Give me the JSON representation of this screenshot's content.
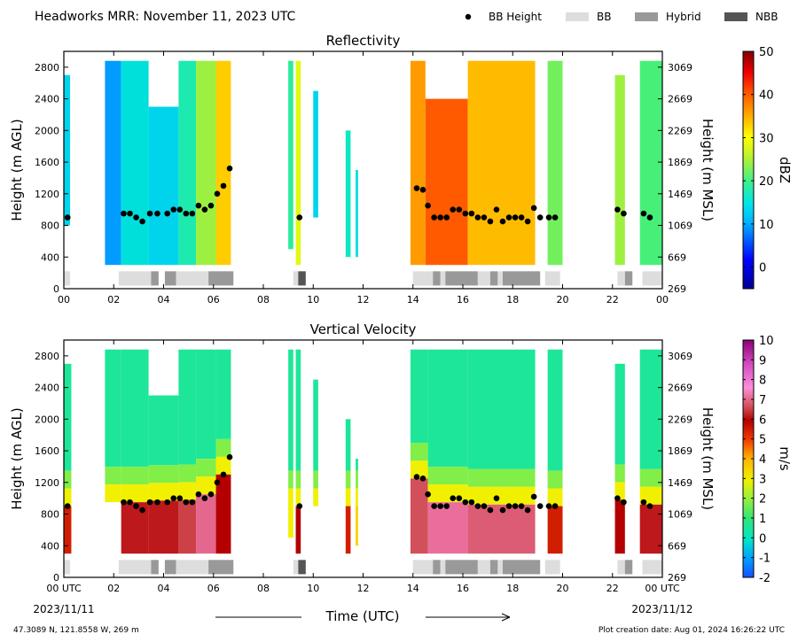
{
  "header": {
    "title": "Headworks MRR:  November 11, 2023 UTC",
    "legend": [
      {
        "label": "BB Height",
        "kind": "dot",
        "color": "#000000"
      },
      {
        "label": "BB",
        "kind": "swatch",
        "color": "#dddddd"
      },
      {
        "label": "Hybrid",
        "kind": "swatch",
        "color": "#999999"
      },
      {
        "label": "NBB",
        "kind": "swatch",
        "color": "#555555"
      }
    ]
  },
  "footer": {
    "location": "47.3089 N, 121.8558 W, 269 m",
    "creation": "Plot creation date: Aug 01, 2024 16:26:22 UTC",
    "start_date": "2023/11/11",
    "end_date": "2023/11/12"
  },
  "chart_data": [
    {
      "type": "heatmap",
      "title": "Reflectivity",
      "xlabel": "",
      "ylabel": "Height (m AGL)",
      "ylabel_right": "Height (m MSL)",
      "colorbar_label": "dBZ",
      "xlim": [
        0,
        24
      ],
      "ylim": [
        0,
        3000
      ],
      "x_ticks": [
        "00",
        "02",
        "04",
        "06",
        "08",
        "10",
        "12",
        "14",
        "16",
        "18",
        "20",
        "22",
        "00"
      ],
      "y_ticks": [
        0,
        400,
        800,
        1200,
        1600,
        2000,
        2400,
        2800
      ],
      "y_ticks_right": [
        269,
        669,
        1069,
        1469,
        1869,
        2269,
        2669,
        3069
      ],
      "colorbar": {
        "min": -5,
        "max": 50,
        "ticks": [
          0,
          10,
          20,
          30,
          40,
          50
        ]
      },
      "data_top": 2880,
      "data_bottom": 300,
      "segments": [
        {
          "start": 0.0,
          "end": 0.25,
          "top": 2700,
          "bottom": 800,
          "value": 12
        },
        {
          "start": 1.65,
          "end": 2.3,
          "top": 2880,
          "bottom": 300,
          "value": 8
        },
        {
          "start": 2.3,
          "end": 3.4,
          "top": 2880,
          "bottom": 300,
          "value": 14
        },
        {
          "start": 3.4,
          "end": 4.6,
          "top": 2300,
          "bottom": 300,
          "value": 12
        },
        {
          "start": 4.6,
          "end": 5.3,
          "top": 2880,
          "bottom": 300,
          "value": 17
        },
        {
          "start": 5.3,
          "end": 6.1,
          "top": 2880,
          "bottom": 300,
          "value": 24
        },
        {
          "start": 6.1,
          "end": 6.7,
          "top": 2880,
          "bottom": 300,
          "value": 33
        },
        {
          "start": 9.0,
          "end": 9.2,
          "top": 2880,
          "bottom": 500,
          "value": 18
        },
        {
          "start": 9.3,
          "end": 9.5,
          "top": 2880,
          "bottom": 300,
          "value": 28
        },
        {
          "start": 10.0,
          "end": 10.2,
          "top": 2500,
          "bottom": 900,
          "value": 12
        },
        {
          "start": 11.3,
          "end": 11.5,
          "top": 2000,
          "bottom": 400,
          "value": 16
        },
        {
          "start": 11.7,
          "end": 11.8,
          "top": 1500,
          "bottom": 400,
          "value": 14
        },
        {
          "start": 13.9,
          "end": 14.5,
          "top": 2880,
          "bottom": 300,
          "value": 36
        },
        {
          "start": 14.5,
          "end": 16.2,
          "top": 2400,
          "bottom": 300,
          "value": 40
        },
        {
          "start": 16.2,
          "end": 18.9,
          "top": 2880,
          "bottom": 300,
          "value": 34
        },
        {
          "start": 19.4,
          "end": 20.0,
          "top": 2880,
          "bottom": 300,
          "value": 22
        },
        {
          "start": 22.1,
          "end": 22.5,
          "top": 2700,
          "bottom": 300,
          "value": 24
        },
        {
          "start": 23.1,
          "end": 24.0,
          "top": 2880,
          "bottom": 300,
          "value": 20
        }
      ],
      "bb_height": {
        "x": [
          0.15,
          2.4,
          2.65,
          2.9,
          3.15,
          3.45,
          3.75,
          4.15,
          4.4,
          4.65,
          4.9,
          5.15,
          5.4,
          5.65,
          5.9,
          6.15,
          6.4,
          6.65,
          9.45,
          14.15,
          14.4,
          14.6,
          14.85,
          15.1,
          15.35,
          15.6,
          15.85,
          16.1,
          16.35,
          16.6,
          16.85,
          17.1,
          17.35,
          17.6,
          17.85,
          18.1,
          18.35,
          18.6,
          18.85,
          19.1,
          19.45,
          19.7,
          22.2,
          22.45,
          23.25,
          23.5
        ],
        "y": [
          900,
          950,
          950,
          900,
          850,
          950,
          950,
          950,
          1000,
          1000,
          950,
          950,
          1050,
          1000,
          1050,
          1200,
          1300,
          1520,
          900,
          1270,
          1250,
          1050,
          900,
          900,
          900,
          1000,
          1000,
          950,
          950,
          900,
          900,
          850,
          1000,
          850,
          900,
          900,
          900,
          850,
          1020,
          900,
          900,
          900,
          1000,
          950,
          950,
          900
        ]
      },
      "bb_type": [
        {
          "start": 0.0,
          "end": 0.25,
          "type": "BB"
        },
        {
          "start": 2.2,
          "end": 3.5,
          "type": "BB"
        },
        {
          "start": 3.5,
          "end": 3.8,
          "type": "Hybrid"
        },
        {
          "start": 4.05,
          "end": 4.5,
          "type": "Hybrid"
        },
        {
          "start": 4.5,
          "end": 5.8,
          "type": "BB"
        },
        {
          "start": 5.8,
          "end": 6.8,
          "type": "Hybrid"
        },
        {
          "start": 9.2,
          "end": 9.4,
          "type": "BB"
        },
        {
          "start": 9.4,
          "end": 9.7,
          "type": "NBB"
        },
        {
          "start": 14.0,
          "end": 14.8,
          "type": "BB"
        },
        {
          "start": 14.8,
          "end": 15.1,
          "type": "Hybrid"
        },
        {
          "start": 15.1,
          "end": 15.3,
          "type": "BB"
        },
        {
          "start": 15.3,
          "end": 16.6,
          "type": "Hybrid"
        },
        {
          "start": 16.6,
          "end": 17.1,
          "type": "BB"
        },
        {
          "start": 17.1,
          "end": 17.4,
          "type": "Hybrid"
        },
        {
          "start": 17.4,
          "end": 17.6,
          "type": "BB"
        },
        {
          "start": 17.6,
          "end": 19.1,
          "type": "Hybrid"
        },
        {
          "start": 19.3,
          "end": 19.9,
          "type": "BB"
        },
        {
          "start": 22.2,
          "end": 22.5,
          "type": "BB"
        },
        {
          "start": 22.5,
          "end": 22.8,
          "type": "Hybrid"
        },
        {
          "start": 23.2,
          "end": 24.0,
          "type": "BB"
        }
      ]
    },
    {
      "type": "heatmap",
      "title": "Vertical Velocity",
      "xlabel": "Time (UTC)",
      "ylabel": "Height (m AGL)",
      "ylabel_right": "Height (m MSL)",
      "colorbar_label": "m/s",
      "xlim": [
        0,
        24
      ],
      "ylim": [
        0,
        3000
      ],
      "x_ticks": [
        "00 UTC",
        "02",
        "04",
        "06",
        "08",
        "10",
        "12",
        "14",
        "16",
        "18",
        "20",
        "22",
        "00 UTC"
      ],
      "y_ticks": [
        0,
        400,
        800,
        1200,
        1600,
        2000,
        2400,
        2800
      ],
      "y_ticks_right": [
        269,
        669,
        1069,
        1469,
        1869,
        2269,
        2669,
        3069
      ],
      "colorbar": {
        "min": -2,
        "max": 10,
        "ticks": [
          -2,
          -1,
          0,
          1,
          2,
          3,
          4,
          5,
          6,
          7,
          8,
          9,
          10
        ]
      },
      "data_top": 2880,
      "data_bottom": 300,
      "upper_value": 0.6,
      "transition_value": 3.0,
      "lower_value": 6.0,
      "segments": [
        {
          "start": 0.0,
          "end": 0.3,
          "top": 2700,
          "bottom": 300,
          "bb": 900,
          "lower_value": 5.5
        },
        {
          "start": 1.65,
          "end": 2.3,
          "top": 2880,
          "bottom": 1000,
          "bb": 950,
          "lower_value": 3.5
        },
        {
          "start": 2.3,
          "end": 3.4,
          "top": 2880,
          "bottom": 300,
          "bb": 950,
          "lower_value": 6.3
        },
        {
          "start": 3.4,
          "end": 4.6,
          "top": 2300,
          "bottom": 300,
          "bb": 970,
          "lower_value": 6.3
        },
        {
          "start": 4.6,
          "end": 5.3,
          "top": 2880,
          "bottom": 300,
          "bb": 980,
          "lower_value": 6.8
        },
        {
          "start": 5.3,
          "end": 6.1,
          "top": 2880,
          "bottom": 300,
          "bb": 1050,
          "lower_value": 7.4
        },
        {
          "start": 6.1,
          "end": 6.7,
          "top": 2880,
          "bottom": 300,
          "bb": 1300,
          "lower_value": 6.0
        },
        {
          "start": 9.0,
          "end": 9.2,
          "top": 2880,
          "bottom": 500,
          "bb": 900,
          "lower_value": 3.0
        },
        {
          "start": 9.3,
          "end": 9.5,
          "top": 2880,
          "bottom": 300,
          "bb": 900,
          "lower_value": 6.0
        },
        {
          "start": 10.0,
          "end": 10.2,
          "top": 2500,
          "bottom": 900,
          "bb": 900,
          "lower_value": 2.5
        },
        {
          "start": 11.3,
          "end": 11.5,
          "top": 2000,
          "bottom": 300,
          "bb": 900,
          "lower_value": 5.5
        },
        {
          "start": 11.7,
          "end": 11.8,
          "top": 1500,
          "bottom": 400,
          "bb": 900,
          "lower_value": 3.5
        },
        {
          "start": 13.9,
          "end": 14.6,
          "top": 2880,
          "bottom": 300,
          "bb": 1250,
          "lower_value": 7.0
        },
        {
          "start": 14.6,
          "end": 16.2,
          "top": 2880,
          "bottom": 300,
          "bb": 950,
          "lower_value": 7.5
        },
        {
          "start": 16.2,
          "end": 18.9,
          "top": 2880,
          "bottom": 300,
          "bb": 920,
          "lower_value": 7.2
        },
        {
          "start": 19.4,
          "end": 20.0,
          "top": 2880,
          "bottom": 300,
          "bb": 900,
          "lower_value": 5.5
        },
        {
          "start": 22.1,
          "end": 22.5,
          "top": 2700,
          "bottom": 300,
          "bb": 980,
          "lower_value": 6.0
        },
        {
          "start": 23.1,
          "end": 24.0,
          "top": 2880,
          "bottom": 300,
          "bb": 920,
          "lower_value": 6.3
        }
      ],
      "bb_height": {
        "x": [
          0.15,
          2.4,
          2.65,
          2.9,
          3.15,
          3.45,
          3.75,
          4.15,
          4.4,
          4.65,
          4.9,
          5.15,
          5.4,
          5.65,
          5.9,
          6.15,
          6.4,
          6.65,
          9.45,
          14.15,
          14.4,
          14.6,
          14.85,
          15.1,
          15.35,
          15.6,
          15.85,
          16.1,
          16.35,
          16.6,
          16.85,
          17.1,
          17.35,
          17.6,
          17.85,
          18.1,
          18.35,
          18.6,
          18.85,
          19.1,
          19.45,
          19.7,
          22.2,
          22.45,
          23.25,
          23.5
        ],
        "y": [
          900,
          950,
          950,
          900,
          850,
          950,
          950,
          950,
          1000,
          1000,
          950,
          950,
          1050,
          1000,
          1050,
          1200,
          1300,
          1520,
          900,
          1270,
          1250,
          1050,
          900,
          900,
          900,
          1000,
          1000,
          950,
          950,
          900,
          900,
          850,
          1000,
          850,
          900,
          900,
          900,
          850,
          1020,
          900,
          900,
          900,
          1000,
          950,
          950,
          900
        ]
      },
      "bb_type": [
        {
          "start": 0.0,
          "end": 0.25,
          "type": "BB"
        },
        {
          "start": 2.2,
          "end": 3.5,
          "type": "BB"
        },
        {
          "start": 3.5,
          "end": 3.8,
          "type": "Hybrid"
        },
        {
          "start": 4.05,
          "end": 4.5,
          "type": "Hybrid"
        },
        {
          "start": 4.5,
          "end": 5.8,
          "type": "BB"
        },
        {
          "start": 5.8,
          "end": 6.8,
          "type": "Hybrid"
        },
        {
          "start": 9.2,
          "end": 9.4,
          "type": "BB"
        },
        {
          "start": 9.4,
          "end": 9.7,
          "type": "NBB"
        },
        {
          "start": 14.0,
          "end": 14.8,
          "type": "BB"
        },
        {
          "start": 14.8,
          "end": 15.1,
          "type": "Hybrid"
        },
        {
          "start": 15.1,
          "end": 15.3,
          "type": "BB"
        },
        {
          "start": 15.3,
          "end": 16.6,
          "type": "Hybrid"
        },
        {
          "start": 16.6,
          "end": 17.1,
          "type": "BB"
        },
        {
          "start": 17.1,
          "end": 17.4,
          "type": "Hybrid"
        },
        {
          "start": 17.4,
          "end": 17.6,
          "type": "BB"
        },
        {
          "start": 17.6,
          "end": 19.1,
          "type": "Hybrid"
        },
        {
          "start": 19.3,
          "end": 19.9,
          "type": "BB"
        },
        {
          "start": 22.2,
          "end": 22.5,
          "type": "BB"
        },
        {
          "start": 22.5,
          "end": 22.8,
          "type": "Hybrid"
        },
        {
          "start": 23.2,
          "end": 24.0,
          "type": "BB"
        }
      ]
    }
  ]
}
